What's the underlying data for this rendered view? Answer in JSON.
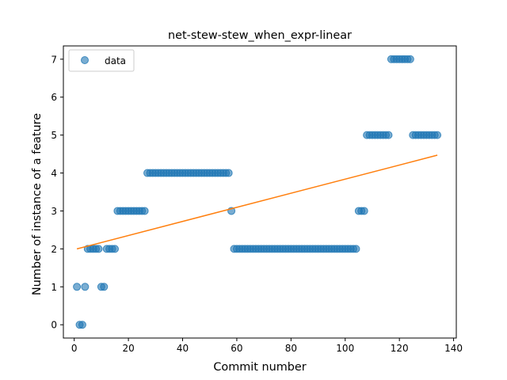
{
  "chart_data": {
    "type": "scatter",
    "title": "net-stew-stew_when_expr-linear",
    "xlabel": "Commit number",
    "ylabel": "Number of instance of a feature",
    "xlim": [
      -4,
      141
    ],
    "ylim": [
      -0.35,
      7.35
    ],
    "xticks": [
      0,
      20,
      40,
      60,
      80,
      100,
      120,
      140
    ],
    "yticks": [
      0,
      1,
      2,
      3,
      4,
      5,
      6,
      7
    ],
    "grid": false,
    "legend": {
      "position": "top-left",
      "entries": [
        "data"
      ]
    },
    "series": [
      {
        "name": "data",
        "kind": "scatter",
        "color": "#1f77b4",
        "x": [
          1,
          2,
          3,
          4,
          5,
          6,
          7,
          8,
          9,
          10,
          11,
          12,
          13,
          14,
          15,
          16,
          17,
          18,
          19,
          20,
          21,
          22,
          23,
          24,
          25,
          26,
          27,
          28,
          29,
          30,
          31,
          32,
          33,
          34,
          35,
          36,
          37,
          38,
          39,
          40,
          41,
          42,
          43,
          44,
          45,
          46,
          47,
          48,
          49,
          50,
          51,
          52,
          53,
          54,
          55,
          56,
          57,
          58,
          59,
          60,
          61,
          62,
          63,
          64,
          65,
          66,
          67,
          68,
          69,
          70,
          71,
          72,
          73,
          74,
          75,
          76,
          77,
          78,
          79,
          80,
          81,
          82,
          83,
          84,
          85,
          86,
          87,
          88,
          89,
          90,
          91,
          92,
          93,
          94,
          95,
          96,
          97,
          98,
          99,
          100,
          101,
          102,
          103,
          104,
          105,
          106,
          107,
          108,
          109,
          110,
          111,
          112,
          113,
          114,
          115,
          116,
          117,
          118,
          119,
          120,
          121,
          122,
          123,
          124,
          125,
          126,
          127,
          128,
          129,
          130,
          131,
          132,
          133,
          134
        ],
        "y": [
          1,
          0,
          0,
          1,
          2,
          2,
          2,
          2,
          2,
          1,
          1,
          2,
          2,
          2,
          2,
          3,
          3,
          3,
          3,
          3,
          3,
          3,
          3,
          3,
          3,
          3,
          4,
          4,
          4,
          4,
          4,
          4,
          4,
          4,
          4,
          4,
          4,
          4,
          4,
          4,
          4,
          4,
          4,
          4,
          4,
          4,
          4,
          4,
          4,
          4,
          4,
          4,
          4,
          4,
          4,
          4,
          4,
          3,
          2,
          2,
          2,
          2,
          2,
          2,
          2,
          2,
          2,
          2,
          2,
          2,
          2,
          2,
          2,
          2,
          2,
          2,
          2,
          2,
          2,
          2,
          2,
          2,
          2,
          2,
          2,
          2,
          2,
          2,
          2,
          2,
          2,
          2,
          2,
          2,
          2,
          2,
          2,
          2,
          2,
          2,
          2,
          2,
          2,
          2,
          3,
          3,
          3,
          5,
          5,
          5,
          5,
          5,
          5,
          5,
          5,
          5,
          7,
          7,
          7,
          7,
          7,
          7,
          7,
          7,
          5,
          5,
          5,
          5,
          5,
          5,
          5,
          5,
          5,
          5
        ]
      },
      {
        "kind": "line",
        "color": "#ff7f0e",
        "x": [
          1,
          134
        ],
        "y": [
          2.0,
          4.47
        ]
      }
    ]
  }
}
